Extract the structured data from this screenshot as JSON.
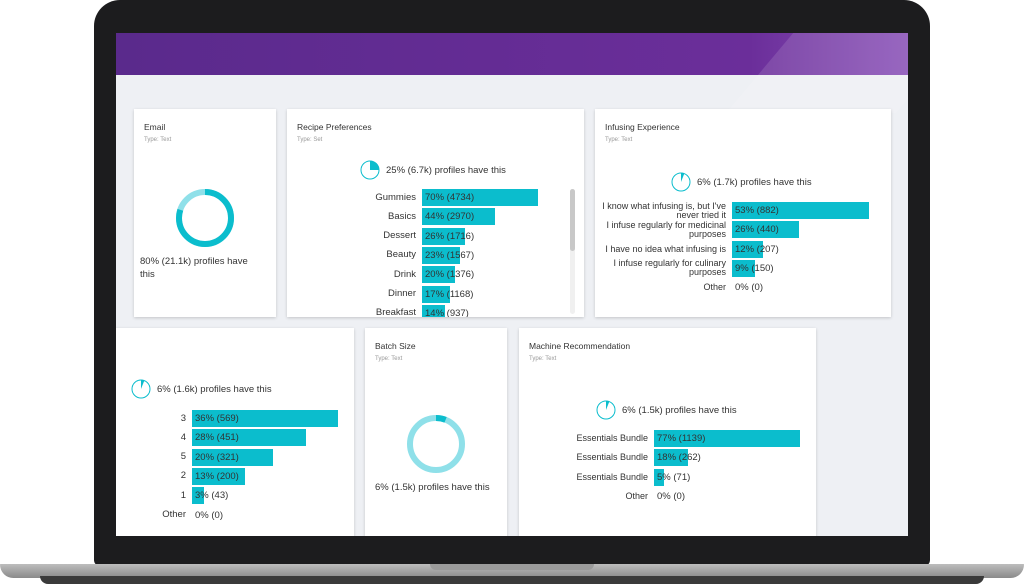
{
  "colors": {
    "bar": "#0bbdcd",
    "donut_light": "#8fe0e9",
    "header": "#5a2a8c"
  },
  "email": {
    "title": "Email",
    "type": "Type: Text",
    "summary": "80% (21.1k) profiles have this",
    "percent": 80
  },
  "recipe": {
    "title": "Recipe Preferences",
    "type": "Type: Set",
    "summary": "25% (6.7k) profiles have this",
    "percent": 25,
    "rows": [
      {
        "label": "Gummies",
        "value": "70% (4734)",
        "pct": 70
      },
      {
        "label": "Basics",
        "value": "44% (2970)",
        "pct": 44
      },
      {
        "label": "Dessert",
        "value": "26% (1716)",
        "pct": 26
      },
      {
        "label": "Beauty",
        "value": "23% (1567)",
        "pct": 23
      },
      {
        "label": "Drink",
        "value": "20% (1376)",
        "pct": 20
      },
      {
        "label": "Dinner",
        "value": "17% (1168)",
        "pct": 17
      },
      {
        "label": "Breakfast",
        "value": "14% (937)",
        "pct": 14
      }
    ]
  },
  "infusing": {
    "title": "Infusing Experience",
    "type": "Type: Text",
    "summary": "6% (1.7k) profiles have this",
    "percent": 6,
    "rows": [
      {
        "label": "I know what infusing is, but I've never tried it",
        "value": "53% (882)",
        "pct": 53
      },
      {
        "label": "I infuse regularly for medicinal purposes",
        "value": "26% (440)",
        "pct": 26
      },
      {
        "label": "I have no idea what infusing is",
        "value": "12% (207)",
        "pct": 12
      },
      {
        "label": "I infuse regularly for culinary purposes",
        "value": "9% (150)",
        "pct": 9
      },
      {
        "label": "Other",
        "value": "0% (0)",
        "pct": 0
      }
    ]
  },
  "fourth": {
    "summary": "6% (1.6k) profiles have this",
    "percent": 6,
    "rows": [
      {
        "label": "3",
        "value": "36% (569)",
        "pct": 36
      },
      {
        "label": "4",
        "value": "28% (451)",
        "pct": 28
      },
      {
        "label": "5",
        "value": "20% (321)",
        "pct": 20
      },
      {
        "label": "2",
        "value": "13% (200)",
        "pct": 13
      },
      {
        "label": "1",
        "value": "3% (43)",
        "pct": 3
      },
      {
        "label": "Other",
        "value": "0% (0)",
        "pct": 0
      }
    ]
  },
  "batch": {
    "title": "Batch Size",
    "type": "Type: Text",
    "summary": "6% (1.5k) profiles have this",
    "percent": 6
  },
  "machine": {
    "title": "Machine Recommendation",
    "type": "Type: Text",
    "summary": "6% (1.5k) profiles have this",
    "percent": 6,
    "rows": [
      {
        "label": "Essentials Bundle",
        "value": "77% (1139)",
        "pct": 77
      },
      {
        "label": "Essentials Bundle",
        "value": "18% (262)",
        "pct": 18
      },
      {
        "label": "Essentials Bundle",
        "value": "5% (71)",
        "pct": 5
      },
      {
        "label": "Other",
        "value": "0% (0)",
        "pct": 0
      }
    ]
  }
}
